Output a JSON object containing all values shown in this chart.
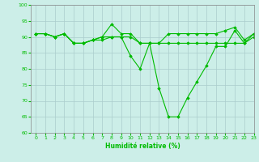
{
  "title": "",
  "xlabel": "Humidité relative (%)",
  "ylabel": "",
  "background_color": "#cceee8",
  "grid_color": "#aacccc",
  "line_color": "#00bb00",
  "ylim": [
    60,
    100
  ],
  "xlim": [
    -0.5,
    23
  ],
  "yticks": [
    60,
    65,
    70,
    75,
    80,
    85,
    90,
    95,
    100
  ],
  "xticks": [
    0,
    1,
    2,
    3,
    4,
    5,
    6,
    7,
    8,
    9,
    10,
    11,
    12,
    13,
    14,
    15,
    16,
    17,
    18,
    19,
    20,
    21,
    22,
    23
  ],
  "series": [
    [
      91,
      91,
      90,
      91,
      88,
      88,
      89,
      90,
      94,
      91,
      91,
      88,
      88,
      88,
      91,
      91,
      91,
      91,
      91,
      91,
      92,
      93,
      89,
      91
    ],
    [
      91,
      91,
      90,
      91,
      88,
      88,
      89,
      89,
      90,
      90,
      90,
      88,
      88,
      88,
      88,
      88,
      88,
      88,
      88,
      88,
      88,
      88,
      88,
      90
    ],
    [
      91,
      91,
      90,
      91,
      88,
      88,
      89,
      90,
      90,
      90,
      84,
      80,
      88,
      74,
      65,
      65,
      71,
      76,
      81,
      87,
      87,
      92,
      88,
      91
    ]
  ]
}
